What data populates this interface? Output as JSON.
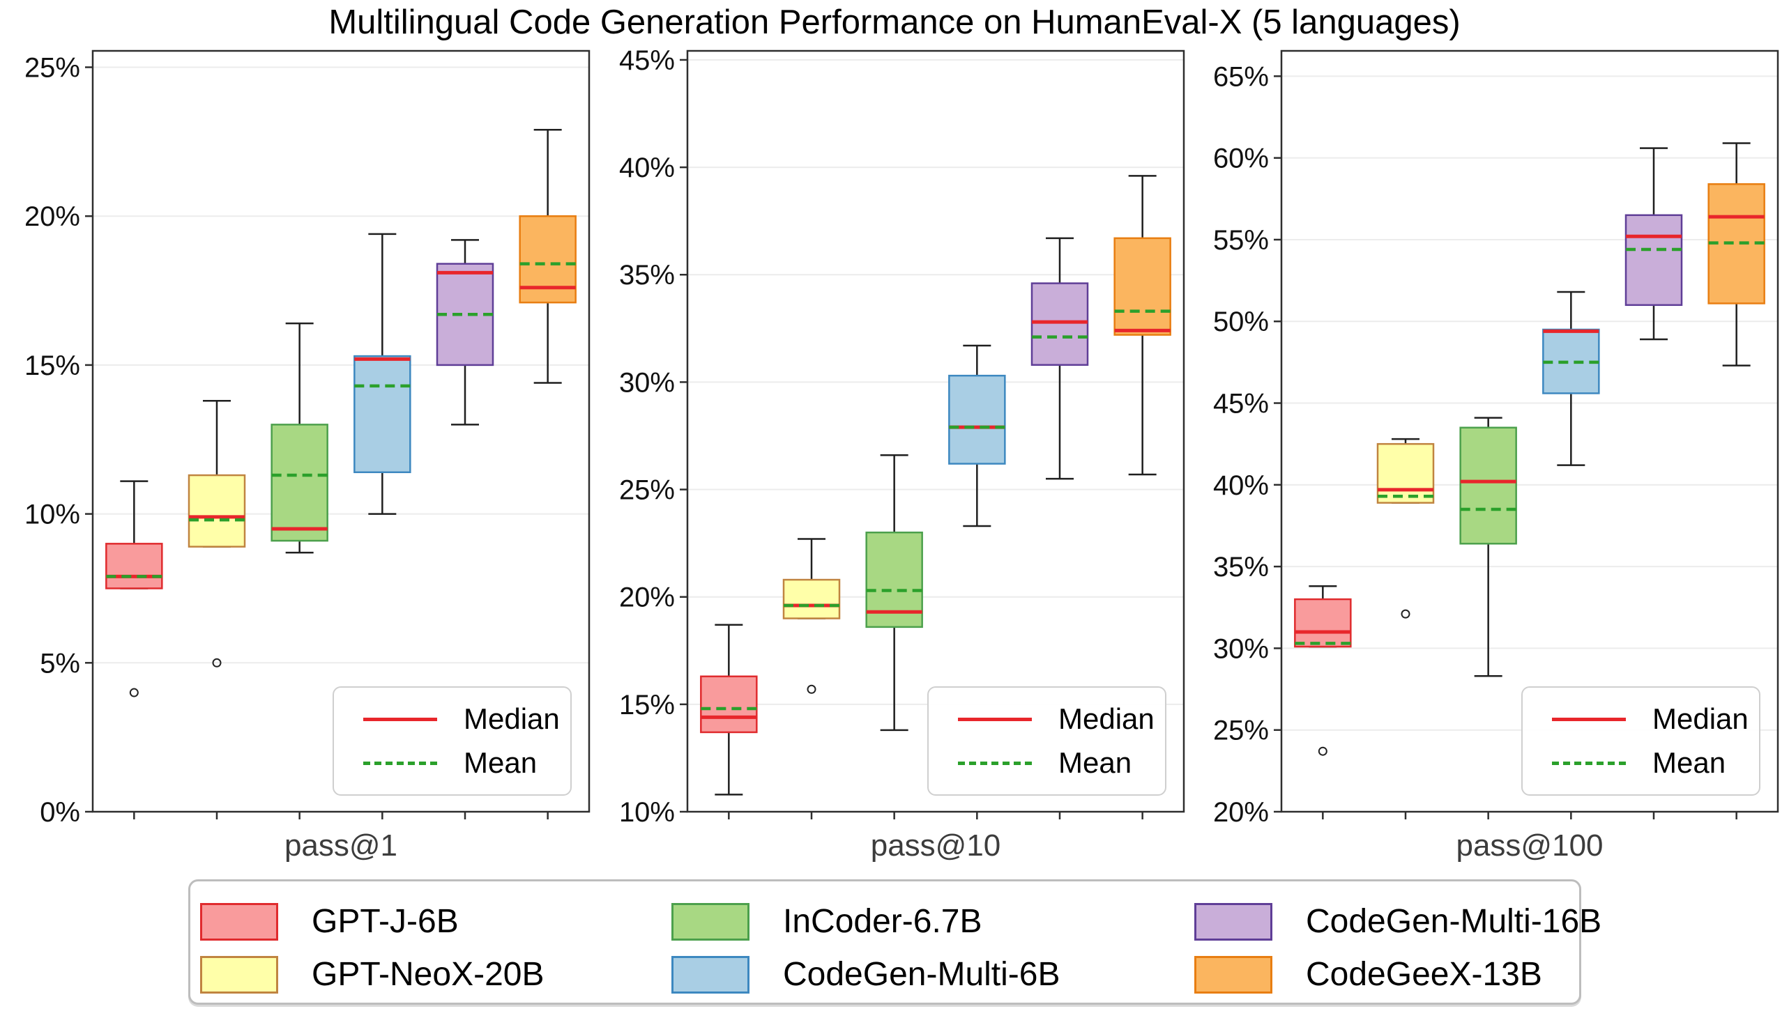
{
  "title": "Multilingual Code Generation Performance on HumanEval-X (5 languages)",
  "inplot_legend": {
    "median_label": "Median",
    "mean_label": "Mean"
  },
  "colors": {
    "median_line": "#e8262b",
    "mean_line": "#2ba02b",
    "gridline": "#ececec",
    "frame": "#2e2e2e",
    "whisker": "#1f1f1f",
    "tick_text": "#111111",
    "xlabel_text": "#3c3c3c",
    "legend_border": "#bdbdbd"
  },
  "models": [
    {
      "name": "GPT-J-6B",
      "fill": "#f99b9c",
      "edge": "#e02b2e"
    },
    {
      "name": "GPT-NeoX-20B",
      "fill": "#ffffa9",
      "edge": "#c08440"
    },
    {
      "name": "InCoder-6.7B",
      "fill": "#a8d883",
      "edge": "#4ca04c"
    },
    {
      "name": "CodeGen-Multi-6B",
      "fill": "#a9cee4",
      "edge": "#3d88c0"
    },
    {
      "name": "CodeGen-Multi-16B",
      "fill": "#c9aed9",
      "edge": "#5f3e97"
    },
    {
      "name": "CodeGeeX-13B",
      "fill": "#fbb55f",
      "edge": "#e87e12"
    }
  ],
  "chart_data": {
    "type": "boxplot",
    "note": "Each box summarizes one model's pass@k scores over 5 programming languages",
    "subplots": [
      {
        "xlabel": "pass@1",
        "ylim": [
          0,
          25.55
        ],
        "yticks": [
          {
            "v": 0,
            "label": "0%"
          },
          {
            "v": 5,
            "label": "5%"
          },
          {
            "v": 10,
            "label": "10%"
          },
          {
            "v": 15,
            "label": "15%"
          },
          {
            "v": 20,
            "label": "20%"
          },
          {
            "v": 25,
            "label": "25%"
          }
        ],
        "boxes": [
          {
            "model": "GPT-J-6B",
            "whisker_low": 7.5,
            "q1": 7.5,
            "median": 7.9,
            "mean": 7.9,
            "q3": 9.0,
            "whisker_high": 11.1,
            "outliers": [
              4.0
            ]
          },
          {
            "model": "GPT-NeoX-20B",
            "whisker_low": 8.9,
            "q1": 8.9,
            "median": 9.9,
            "mean": 9.8,
            "q3": 11.3,
            "whisker_high": 13.8,
            "outliers": [
              5.0
            ]
          },
          {
            "model": "InCoder-6.7B",
            "whisker_low": 8.7,
            "q1": 9.1,
            "median": 9.5,
            "mean": 11.3,
            "q3": 13.0,
            "whisker_high": 16.4,
            "outliers": []
          },
          {
            "model": "CodeGen-Multi-6B",
            "whisker_low": 10.0,
            "q1": 11.4,
            "median": 15.2,
            "mean": 14.3,
            "q3": 15.3,
            "whisker_high": 19.4,
            "outliers": []
          },
          {
            "model": "CodeGen-Multi-16B",
            "whisker_low": 13.0,
            "q1": 15.0,
            "median": 18.1,
            "mean": 16.7,
            "q3": 18.4,
            "whisker_high": 19.2,
            "outliers": []
          },
          {
            "model": "CodeGeeX-13B",
            "whisker_low": 14.4,
            "q1": 17.1,
            "median": 17.6,
            "mean": 18.4,
            "q3": 20.0,
            "whisker_high": 22.9,
            "outliers": []
          }
        ]
      },
      {
        "xlabel": "pass@10",
        "ylim": [
          10,
          45.42
        ],
        "yticks": [
          {
            "v": 10,
            "label": "10%"
          },
          {
            "v": 15,
            "label": "15%"
          },
          {
            "v": 20,
            "label": "20%"
          },
          {
            "v": 25,
            "label": "25%"
          },
          {
            "v": 30,
            "label": "30%"
          },
          {
            "v": 35,
            "label": "35%"
          },
          {
            "v": 40,
            "label": "40%"
          },
          {
            "v": 45,
            "label": "45%"
          }
        ],
        "boxes": [
          {
            "model": "GPT-J-6B",
            "whisker_low": 10.8,
            "q1": 13.7,
            "median": 14.4,
            "mean": 14.8,
            "q3": 16.3,
            "whisker_high": 18.7,
            "outliers": []
          },
          {
            "model": "GPT-NeoX-20B",
            "whisker_low": 19.0,
            "q1": 19.0,
            "median": 19.6,
            "mean": 19.6,
            "q3": 20.8,
            "whisker_high": 22.7,
            "outliers": [
              15.7
            ]
          },
          {
            "model": "InCoder-6.7B",
            "whisker_low": 13.8,
            "q1": 18.6,
            "median": 19.3,
            "mean": 20.3,
            "q3": 23.0,
            "whisker_high": 26.6,
            "outliers": []
          },
          {
            "model": "CodeGen-Multi-6B",
            "whisker_low": 23.3,
            "q1": 26.2,
            "median": 27.9,
            "mean": 27.9,
            "q3": 30.3,
            "whisker_high": 31.7,
            "outliers": []
          },
          {
            "model": "CodeGen-Multi-16B",
            "whisker_low": 25.5,
            "q1": 30.8,
            "median": 32.8,
            "mean": 32.1,
            "q3": 34.6,
            "whisker_high": 36.7,
            "outliers": []
          },
          {
            "model": "CodeGeeX-13B",
            "whisker_low": 25.7,
            "q1": 32.2,
            "median": 32.4,
            "mean": 33.3,
            "q3": 36.7,
            "whisker_high": 39.6,
            "outliers": []
          }
        ]
      },
      {
        "xlabel": "pass@100",
        "ylim": [
          20,
          66.55
        ],
        "yticks": [
          {
            "v": 20,
            "label": "20%"
          },
          {
            "v": 25,
            "label": "25%"
          },
          {
            "v": 30,
            "label": "30%"
          },
          {
            "v": 35,
            "label": "35%"
          },
          {
            "v": 40,
            "label": "40%"
          },
          {
            "v": 45,
            "label": "45%"
          },
          {
            "v": 50,
            "label": "50%"
          },
          {
            "v": 55,
            "label": "55%"
          },
          {
            "v": 60,
            "label": "60%"
          },
          {
            "v": 65,
            "label": "65%"
          }
        ],
        "boxes": [
          {
            "model": "GPT-J-6B",
            "whisker_low": 30.1,
            "q1": 30.1,
            "median": 31.0,
            "mean": 30.3,
            "q3": 33.0,
            "whisker_high": 33.8,
            "outliers": [
              23.7
            ]
          },
          {
            "model": "GPT-NeoX-20B",
            "whisker_low": 38.9,
            "q1": 38.9,
            "median": 39.7,
            "mean": 39.3,
            "q3": 42.5,
            "whisker_high": 42.8,
            "outliers": [
              32.1
            ]
          },
          {
            "model": "InCoder-6.7B",
            "whisker_low": 28.3,
            "q1": 36.4,
            "median": 40.2,
            "mean": 38.5,
            "q3": 43.5,
            "whisker_high": 44.1,
            "outliers": []
          },
          {
            "model": "CodeGen-Multi-6B",
            "whisker_low": 41.2,
            "q1": 45.6,
            "median": 49.4,
            "mean": 47.5,
            "q3": 49.5,
            "whisker_high": 51.8,
            "outliers": []
          },
          {
            "model": "CodeGen-Multi-16B",
            "whisker_low": 48.9,
            "q1": 51.0,
            "median": 55.2,
            "mean": 54.4,
            "q3": 56.5,
            "whisker_high": 60.6,
            "outliers": []
          },
          {
            "model": "CodeGeeX-13B",
            "whisker_low": 47.3,
            "q1": 51.1,
            "median": 56.4,
            "mean": 54.8,
            "q3": 58.4,
            "whisker_high": 60.9,
            "outliers": []
          }
        ]
      }
    ]
  }
}
